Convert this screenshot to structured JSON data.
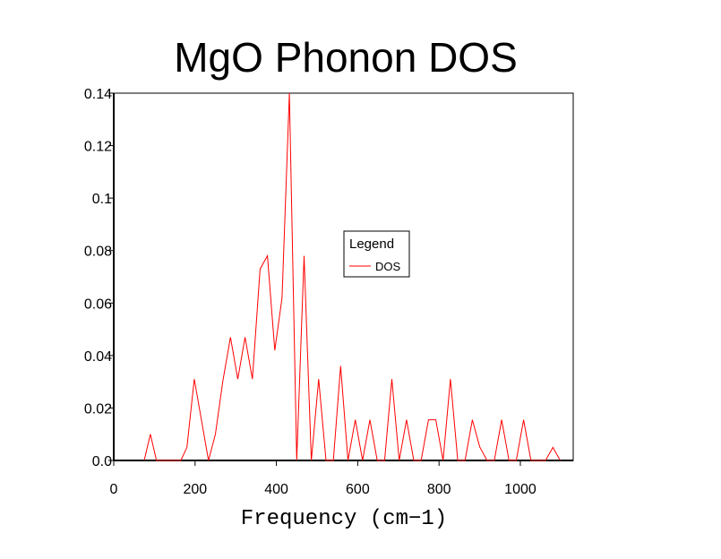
{
  "chart_data": {
    "type": "line",
    "title": "MgO Phonon DOS",
    "xlabel": "Frequency (cm−1)",
    "ylabel": "",
    "xlim": [
      0,
      1130
    ],
    "ylim": [
      0,
      0.14
    ],
    "xticks": [
      0,
      200,
      400,
      600,
      800,
      1000
    ],
    "xtick_labels": [
      "0",
      "200",
      "400",
      "600",
      "800",
      "1000"
    ],
    "yticks": [
      0,
      0.02,
      0.04,
      0.06,
      0.08,
      0.1,
      0.12,
      0.14
    ],
    "ytick_labels": [
      "0.0",
      "0.02",
      "0.04",
      "0.06",
      "0.08",
      "0.1",
      "0.12",
      "0.14"
    ],
    "grid": false,
    "legend": {
      "title": "Legend",
      "position": "center-right",
      "entries": [
        "DOS"
      ]
    },
    "series": [
      {
        "name": "DOS",
        "color": "#ff0000",
        "x": [
          75,
          90,
          105,
          165,
          180,
          198,
          215,
          233,
          250,
          268,
          287,
          305,
          323,
          341,
          360,
          378,
          396,
          414,
          432,
          450,
          468,
          486,
          504,
          522,
          540,
          558,
          576,
          594,
          612,
          630,
          648,
          666,
          684,
          702,
          720,
          738,
          756,
          774,
          792,
          810,
          828,
          846,
          864,
          882,
          900,
          918,
          936,
          954,
          972,
          990,
          1008,
          1026,
          1044,
          1062,
          1080,
          1098
        ],
        "values": [
          0.0,
          0.01,
          0.0,
          0.0,
          0.005,
          0.031,
          0.016,
          0.0,
          0.01,
          0.03,
          0.047,
          0.031,
          0.047,
          0.031,
          0.073,
          0.078,
          0.042,
          0.062,
          0.14,
          0.0,
          0.078,
          0.0,
          0.031,
          0.0,
          0.0,
          0.036,
          0.0,
          0.0155,
          0.0,
          0.0155,
          0.0,
          0.0,
          0.031,
          0.0,
          0.0155,
          0.0,
          0.0,
          0.0155,
          0.0155,
          0.0,
          0.031,
          0.0,
          0.0,
          0.0155,
          0.0052,
          0.0,
          0.0,
          0.0155,
          0.0,
          0.0,
          0.0155,
          0.0,
          0.0,
          0.0,
          0.005,
          0.0
        ]
      }
    ]
  }
}
